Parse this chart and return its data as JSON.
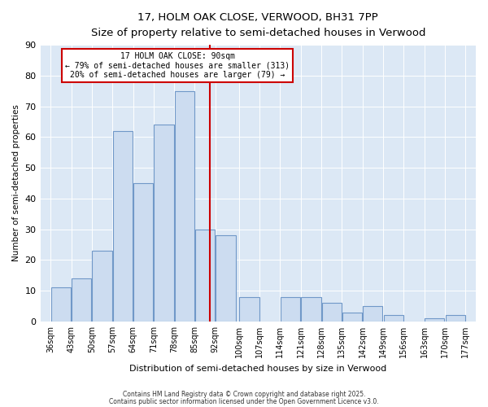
{
  "title_line1": "17, HOLM OAK CLOSE, VERWOOD, BH31 7PP",
  "title_line2": "Size of property relative to semi-detached houses in Verwood",
  "xlabel": "Distribution of semi-detached houses by size in Verwood",
  "ylabel": "Number of semi-detached properties",
  "bins": [
    36,
    43,
    50,
    57,
    64,
    71,
    78,
    85,
    92,
    100,
    107,
    114,
    121,
    128,
    135,
    142,
    149,
    156,
    163,
    170,
    177
  ],
  "counts": [
    11,
    14,
    23,
    62,
    45,
    64,
    75,
    30,
    28,
    8,
    0,
    8,
    8,
    6,
    3,
    5,
    2,
    0,
    1,
    2
  ],
  "bar_facecolor": "#ccdcf0",
  "bar_edgecolor": "#7098c8",
  "vline_x": 90,
  "vline_color": "#cc0000",
  "annotation_box_edgecolor": "#cc0000",
  "annotation_line1": "17 HOLM OAK CLOSE: 90sqm",
  "annotation_line2": "← 79% of semi-detached houses are smaller (313)",
  "annotation_line3": "20% of semi-detached houses are larger (79) →",
  "ylim": [
    0,
    90
  ],
  "yticks": [
    0,
    10,
    20,
    30,
    40,
    50,
    60,
    70,
    80,
    90
  ],
  "bg_color": "#dce8f5",
  "footer_line1": "Contains HM Land Registry data © Crown copyright and database right 2025.",
  "footer_line2": "Contains public sector information licensed under the Open Government Licence v3.0.",
  "tick_labels": [
    "36sqm",
    "43sqm",
    "50sqm",
    "57sqm",
    "64sqm",
    "71sqm",
    "78sqm",
    "85sqm",
    "92sqm",
    "100sqm",
    "107sqm",
    "114sqm",
    "121sqm",
    "128sqm",
    "135sqm",
    "142sqm",
    "149sqm",
    "156sqm",
    "163sqm",
    "170sqm",
    "177sqm"
  ]
}
